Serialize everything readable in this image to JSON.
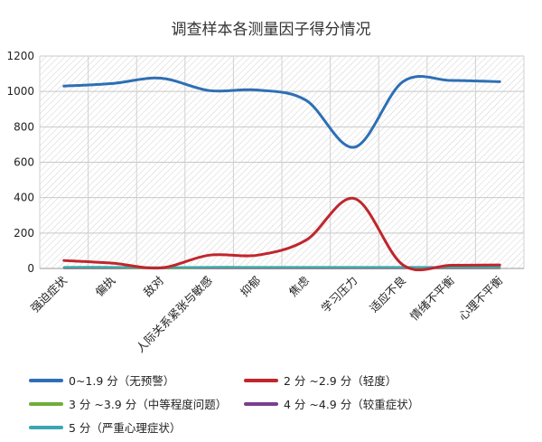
{
  "chart_data": {
    "type": "line",
    "title": "调查样本各测量因子得分情况",
    "xlabel": "",
    "ylabel": "",
    "ylim": [
      0,
      1200
    ],
    "yticks": [
      0,
      200,
      400,
      600,
      800,
      1000,
      1200
    ],
    "grid": true,
    "legend_position": "bottom",
    "categories": [
      "强迫症状",
      "偏执",
      "敌对",
      "人际关系紧张与敏感",
      "抑郁",
      "焦虑",
      "学习压力",
      "适应不良",
      "情绪不平衡",
      "心理不平衡"
    ],
    "series": [
      {
        "name": "0~1.9 分（无预警）",
        "color": "#2e6fb4",
        "values": [
          1030,
          1045,
          1075,
          1005,
          1008,
          950,
          685,
          1055,
          1062,
          1055
        ]
      },
      {
        "name": "2 分 ~2.9 分（轻度）",
        "color": "#c0262c",
        "values": [
          45,
          30,
          3,
          75,
          75,
          160,
          395,
          20,
          18,
          20
        ]
      },
      {
        "name": "3 分 ~3.9 分（中等程度问题）",
        "color": "#6fae3a",
        "values": [
          5,
          5,
          2,
          5,
          5,
          5,
          5,
          5,
          5,
          5
        ]
      },
      {
        "name": "4 分 ~4.9 分（较重症状）",
        "color": "#7a3f8f",
        "values": [
          2,
          2,
          1,
          2,
          2,
          2,
          2,
          2,
          2,
          2
        ]
      },
      {
        "name": "5 分（严重心理症状）",
        "color": "#3aa6b4",
        "values": [
          8,
          8,
          6,
          8,
          8,
          8,
          8,
          8,
          8,
          8
        ]
      }
    ]
  }
}
